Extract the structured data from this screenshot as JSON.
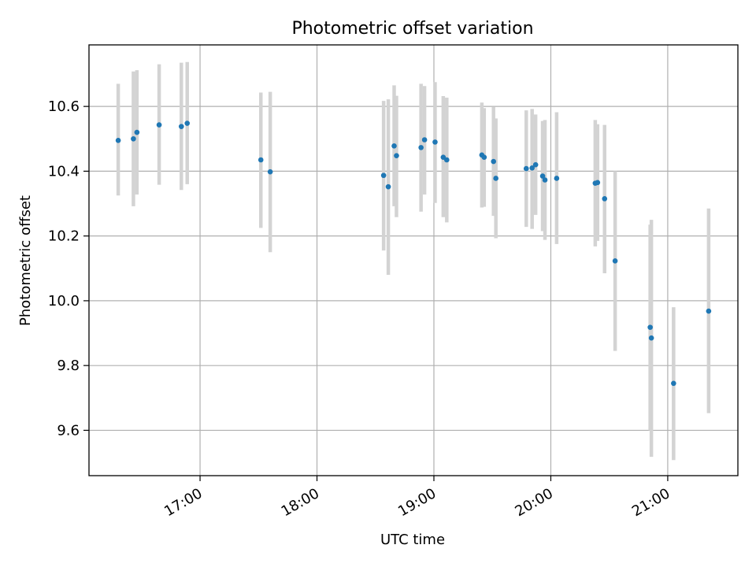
{
  "chart_data": {
    "type": "scatter",
    "title": "Photometric offset variation",
    "xlabel": "UTC time",
    "ylabel": "Photometric offset",
    "grid": true,
    "x_unit": "hours (UTC)",
    "xlim": [
      16.05,
      21.6
    ],
    "ylim": [
      9.46,
      10.79
    ],
    "xticks": [
      {
        "value": 17,
        "label": "17:00"
      },
      {
        "value": 18,
        "label": "18:00"
      },
      {
        "value": 19,
        "label": "19:00"
      },
      {
        "value": 20,
        "label": "20:00"
      },
      {
        "value": 21,
        "label": "21:00"
      }
    ],
    "yticks": [
      {
        "value": 9.6,
        "label": "9.6"
      },
      {
        "value": 9.8,
        "label": "9.8"
      },
      {
        "value": 10.0,
        "label": "10.0"
      },
      {
        "value": 10.2,
        "label": "10.2"
      },
      {
        "value": 10.4,
        "label": "10.4"
      },
      {
        "value": 10.6,
        "label": "10.6"
      }
    ],
    "colors": {
      "point": "#1f77b4",
      "errorbar": "#d3d3d3",
      "grid": "#b0b0b0"
    },
    "points": [
      {
        "x": 16.3,
        "y": 10.495,
        "lo": 10.325,
        "hi": 10.67
      },
      {
        "x": 16.43,
        "y": 10.5,
        "lo": 10.292,
        "hi": 10.708
      },
      {
        "x": 16.46,
        "y": 10.52,
        "lo": 10.328,
        "hi": 10.712
      },
      {
        "x": 16.65,
        "y": 10.543,
        "lo": 10.358,
        "hi": 10.73
      },
      {
        "x": 16.84,
        "y": 10.538,
        "lo": 10.342,
        "hi": 10.735
      },
      {
        "x": 16.89,
        "y": 10.548,
        "lo": 10.36,
        "hi": 10.737
      },
      {
        "x": 17.52,
        "y": 10.435,
        "lo": 10.225,
        "hi": 10.643
      },
      {
        "x": 17.6,
        "y": 10.398,
        "lo": 10.15,
        "hi": 10.645
      },
      {
        "x": 18.57,
        "y": 10.387,
        "lo": 10.155,
        "hi": 10.617
      },
      {
        "x": 18.61,
        "y": 10.352,
        "lo": 10.08,
        "hi": 10.622
      },
      {
        "x": 18.66,
        "y": 10.478,
        "lo": 10.292,
        "hi": 10.665
      },
      {
        "x": 18.68,
        "y": 10.448,
        "lo": 10.258,
        "hi": 10.633
      },
      {
        "x": 18.89,
        "y": 10.473,
        "lo": 10.275,
        "hi": 10.67
      },
      {
        "x": 18.92,
        "y": 10.497,
        "lo": 10.328,
        "hi": 10.663
      },
      {
        "x": 19.01,
        "y": 10.49,
        "lo": 10.302,
        "hi": 10.675
      },
      {
        "x": 19.08,
        "y": 10.443,
        "lo": 10.258,
        "hi": 10.632
      },
      {
        "x": 19.11,
        "y": 10.435,
        "lo": 10.242,
        "hi": 10.627
      },
      {
        "x": 19.41,
        "y": 10.45,
        "lo": 10.288,
        "hi": 10.612
      },
      {
        "x": 19.43,
        "y": 10.443,
        "lo": 10.29,
        "hi": 10.595
      },
      {
        "x": 19.51,
        "y": 10.43,
        "lo": 10.262,
        "hi": 10.598
      },
      {
        "x": 19.53,
        "y": 10.378,
        "lo": 10.193,
        "hi": 10.563
      },
      {
        "x": 19.79,
        "y": 10.408,
        "lo": 10.228,
        "hi": 10.588
      },
      {
        "x": 19.84,
        "y": 10.41,
        "lo": 10.222,
        "hi": 10.592
      },
      {
        "x": 19.87,
        "y": 10.42,
        "lo": 10.265,
        "hi": 10.575
      },
      {
        "x": 19.93,
        "y": 10.385,
        "lo": 10.215,
        "hi": 10.555
      },
      {
        "x": 19.95,
        "y": 10.373,
        "lo": 10.188,
        "hi": 10.558
      },
      {
        "x": 20.05,
        "y": 10.378,
        "lo": 10.175,
        "hi": 10.582
      },
      {
        "x": 20.38,
        "y": 10.363,
        "lo": 10.168,
        "hi": 10.558
      },
      {
        "x": 20.4,
        "y": 10.365,
        "lo": 10.185,
        "hi": 10.545
      },
      {
        "x": 20.46,
        "y": 10.315,
        "lo": 10.085,
        "hi": 10.543
      },
      {
        "x": 20.55,
        "y": 10.123,
        "lo": 9.845,
        "hi": 10.4
      },
      {
        "x": 20.85,
        "y": 9.918,
        "lo": 9.6,
        "hi": 10.235
      },
      {
        "x": 20.86,
        "y": 9.885,
        "lo": 9.518,
        "hi": 10.25
      },
      {
        "x": 21.05,
        "y": 9.745,
        "lo": 9.508,
        "hi": 9.98
      },
      {
        "x": 21.35,
        "y": 9.968,
        "lo": 9.653,
        "hi": 10.285
      }
    ]
  }
}
